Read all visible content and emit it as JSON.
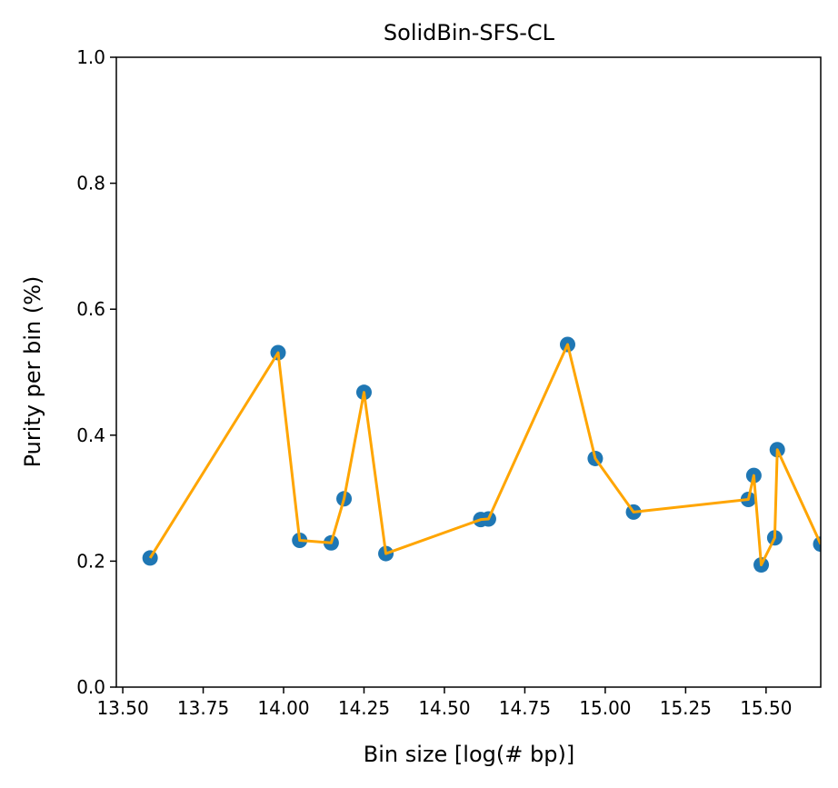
{
  "chart_data": {
    "type": "scatter",
    "title": "SolidBin-SFS-CL",
    "xlabel": "Bin size [log(# bp)]",
    "ylabel": "Purity per bin (%)",
    "xlim": [
      13.48,
      15.67
    ],
    "ylim": [
      0.0,
      1.0
    ],
    "x_ticks": [
      13.5,
      13.75,
      14.0,
      14.25,
      14.5,
      14.75,
      15.0,
      15.25,
      15.5
    ],
    "x_tick_labels": [
      "13.50",
      "13.75",
      "14.00",
      "14.25",
      "14.50",
      "14.75",
      "15.00",
      "15.25",
      "15.50"
    ],
    "y_ticks": [
      0.0,
      0.2,
      0.4,
      0.6,
      0.8,
      1.0
    ],
    "y_tick_labels": [
      "0.0",
      "0.2",
      "0.4",
      "0.6",
      "0.8",
      "1.0"
    ],
    "grid": false,
    "series": [
      {
        "kind": "scatter",
        "color": "#1f77b4",
        "x": [
          13.585,
          13.983,
          14.05,
          14.148,
          14.188,
          14.25,
          14.318,
          14.613,
          14.637,
          14.883,
          14.969,
          15.088,
          15.445,
          15.462,
          15.485,
          15.527,
          15.535,
          15.67
        ],
        "y": [
          0.205,
          0.531,
          0.233,
          0.229,
          0.299,
          0.468,
          0.212,
          0.266,
          0.267,
          0.544,
          0.363,
          0.278,
          0.298,
          0.336,
          0.194,
          0.237,
          0.377,
          0.227
        ]
      },
      {
        "kind": "line",
        "color": "#ffa500",
        "x": [
          13.585,
          13.983,
          14.05,
          14.148,
          14.188,
          14.25,
          14.318,
          14.613,
          14.637,
          14.883,
          14.969,
          15.088,
          15.445,
          15.462,
          15.485,
          15.527,
          15.535,
          15.67
        ],
        "y": [
          0.205,
          0.531,
          0.233,
          0.229,
          0.299,
          0.468,
          0.212,
          0.266,
          0.267,
          0.544,
          0.363,
          0.278,
          0.298,
          0.336,
          0.194,
          0.237,
          0.377,
          0.227
        ]
      }
    ]
  }
}
